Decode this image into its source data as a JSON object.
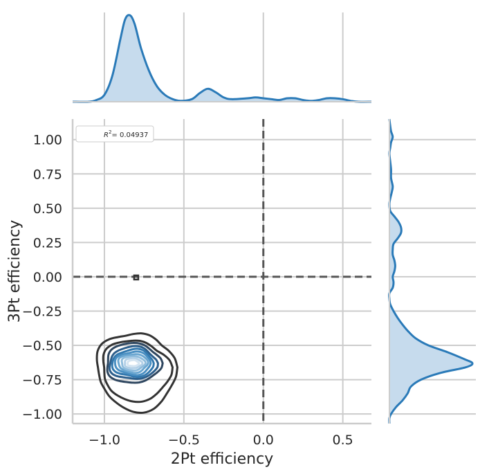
{
  "chart_data": {
    "type": "jointplot-kde",
    "xlabel": "2Pt efficiency",
    "ylabel": "3Pt efficiency",
    "xlim": [
      -1.2,
      0.68
    ],
    "ylim": [
      -1.07,
      1.15
    ],
    "x_ticks": [
      -1.0,
      -0.5,
      0.0,
      0.5
    ],
    "x_tick_labels": [
      "−1.0",
      "−0.5",
      "0.0",
      "0.5"
    ],
    "y_ticks": [
      1.0,
      0.75,
      0.5,
      0.25,
      0.0,
      -0.25,
      -0.5,
      -0.75,
      -1.0
    ],
    "y_tick_labels": [
      "1.00",
      "0.75",
      "0.50",
      "0.25",
      "0.00",
      "−0.25",
      "−0.50",
      "−0.75",
      "−1.00"
    ],
    "grid": true,
    "reference_lines": {
      "vertical_x": 0.0,
      "horizontal_y": 0.0,
      "style": "dashed"
    },
    "legend": {
      "placement": "top-left",
      "label_prefix": "R",
      "label_sup": "2",
      "label_rest": "= 0.04937"
    },
    "joint_kde": {
      "center": [
        -0.82,
        -0.63
      ],
      "levels": [
        {
          "hw": 0.036,
          "hh": 0.022,
          "color": "#d4e4f1"
        },
        {
          "hw": 0.055,
          "hh": 0.037,
          "color": "#b3d0e7"
        },
        {
          "hw": 0.074,
          "hh": 0.052,
          "color": "#8fbcdc"
        },
        {
          "hw": 0.093,
          "hh": 0.067,
          "color": "#6aa6d0"
        },
        {
          "hw": 0.112,
          "hh": 0.083,
          "color": "#4a8fc2"
        },
        {
          "hw": 0.13,
          "hh": 0.099,
          "color": "#3278ae"
        },
        {
          "hw": 0.15,
          "hh": 0.118,
          "color": "#2d5f8c"
        },
        {
          "hw": 0.172,
          "hh": 0.145,
          "color": "#2f4760"
        },
        {
          "hw": 0.198,
          "hh": 0.2,
          "color": "#333333"
        },
        {
          "hw": 0.23,
          "hh": 0.255,
          "color": "#333333"
        }
      ],
      "outlier": {
        "x": -0.8,
        "y": -0.005
      }
    },
    "x_marginal": {
      "x": [
        -1.2,
        -1.1,
        -1.05,
        -1.0,
        -0.95,
        -0.9,
        -0.87,
        -0.84,
        -0.81,
        -0.77,
        -0.72,
        -0.67,
        -0.62,
        -0.57,
        -0.52,
        -0.45,
        -0.4,
        -0.35,
        -0.3,
        -0.25,
        -0.2,
        -0.1,
        -0.05,
        0.0,
        0.05,
        0.1,
        0.15,
        0.2,
        0.25,
        0.3,
        0.35,
        0.4,
        0.45,
        0.5,
        0.55,
        0.6,
        0.68
      ],
      "density": [
        0.0,
        0.0,
        0.02,
        0.08,
        0.3,
        0.72,
        0.95,
        1.0,
        0.9,
        0.62,
        0.36,
        0.18,
        0.08,
        0.03,
        0.01,
        0.03,
        0.1,
        0.15,
        0.11,
        0.05,
        0.03,
        0.04,
        0.05,
        0.04,
        0.03,
        0.02,
        0.04,
        0.04,
        0.02,
        0.01,
        0.02,
        0.04,
        0.04,
        0.03,
        0.01,
        0.0,
        0.0
      ]
    },
    "y_marginal": {
      "y": [
        1.15,
        1.1,
        1.06,
        1.02,
        0.98,
        0.94,
        0.9,
        0.84,
        0.78,
        0.72,
        0.66,
        0.62,
        0.57,
        0.53,
        0.48,
        0.44,
        0.4,
        0.36,
        0.32,
        0.28,
        0.24,
        0.2,
        0.16,
        0.12,
        0.08,
        0.04,
        0.0,
        -0.04,
        -0.08,
        -0.12,
        -0.16,
        -0.2,
        -0.25,
        -0.3,
        -0.35,
        -0.4,
        -0.45,
        -0.5,
        -0.55,
        -0.6,
        -0.63,
        -0.66,
        -0.7,
        -0.75,
        -0.8,
        -0.85,
        -0.9,
        -0.95,
        -1.0,
        -1.03,
        -1.07
      ],
      "density": [
        0.0,
        0.01,
        0.02,
        0.04,
        0.02,
        0.01,
        0.0,
        0.01,
        0.02,
        0.02,
        0.04,
        0.03,
        0.01,
        0.0,
        0.01,
        0.06,
        0.11,
        0.14,
        0.14,
        0.1,
        0.05,
        0.04,
        0.04,
        0.06,
        0.07,
        0.06,
        0.04,
        0.05,
        0.04,
        0.0,
        0.0,
        0.01,
        0.05,
        0.1,
        0.16,
        0.23,
        0.32,
        0.47,
        0.7,
        0.9,
        1.0,
        0.92,
        0.62,
        0.38,
        0.26,
        0.22,
        0.16,
        0.08,
        0.02,
        0.0,
        0.0
      ]
    }
  }
}
